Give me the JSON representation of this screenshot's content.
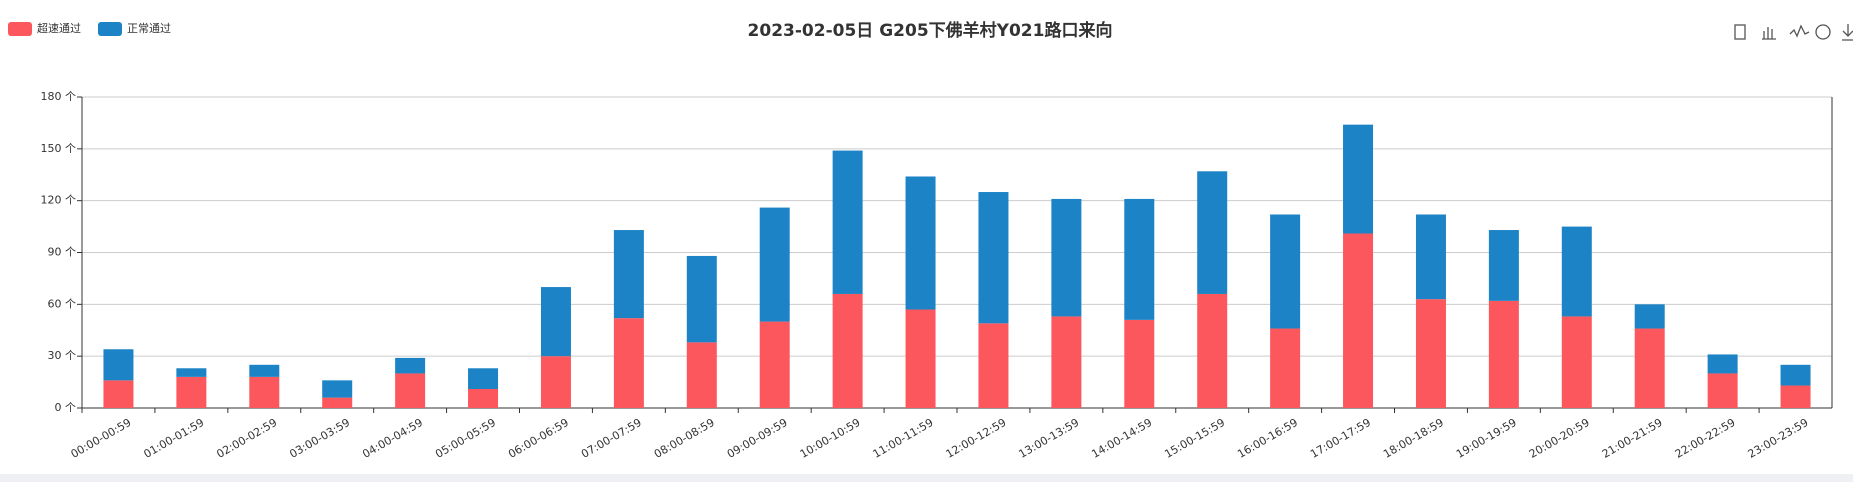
{
  "chart_data": {
    "type": "bar",
    "stacked": true,
    "title": "2023-02-05日 G205下佛羊村Y021路口来向",
    "categories": [
      "00:00-00:59",
      "01:00-01:59",
      "02:00-02:59",
      "03:00-03:59",
      "04:00-04:59",
      "05:00-05:59",
      "06:00-06:59",
      "07:00-07:59",
      "08:00-08:59",
      "09:00-09:59",
      "10:00-10:59",
      "11:00-11:59",
      "12:00-12:59",
      "13:00-13:59",
      "14:00-14:59",
      "15:00-15:59",
      "16:00-16:59",
      "17:00-17:59",
      "18:00-18:59",
      "19:00-19:59",
      "20:00-20:59",
      "21:00-21:59",
      "22:00-22:59",
      "23:00-23:59"
    ],
    "series": [
      {
        "name": "超速通过",
        "color": "#fd575e",
        "values": [
          16,
          18,
          18,
          6,
          20,
          11,
          30,
          52,
          38,
          50,
          66,
          57,
          49,
          53,
          51,
          66,
          46,
          101,
          63,
          62,
          53,
          46,
          20,
          13
        ]
      },
      {
        "name": "正常通过",
        "color": "#1c84c6",
        "values": [
          18,
          5,
          7,
          10,
          9,
          12,
          40,
          51,
          50,
          66,
          83,
          77,
          76,
          68,
          70,
          71,
          66,
          63,
          49,
          41,
          52,
          14,
          11,
          12
        ]
      }
    ],
    "ylim": [
      0,
      180
    ],
    "yticks": [
      {
        "value": 0,
        "label": "0 个"
      },
      {
        "value": 30,
        "label": "30 个"
      },
      {
        "value": 60,
        "label": "60 个"
      },
      {
        "value": 90,
        "label": "90 个"
      },
      {
        "value": 120,
        "label": "120 个"
      },
      {
        "value": 150,
        "label": "150 个"
      },
      {
        "value": 180,
        "label": "180 个"
      }
    ],
    "grid": true,
    "legend": "top-left"
  }
}
